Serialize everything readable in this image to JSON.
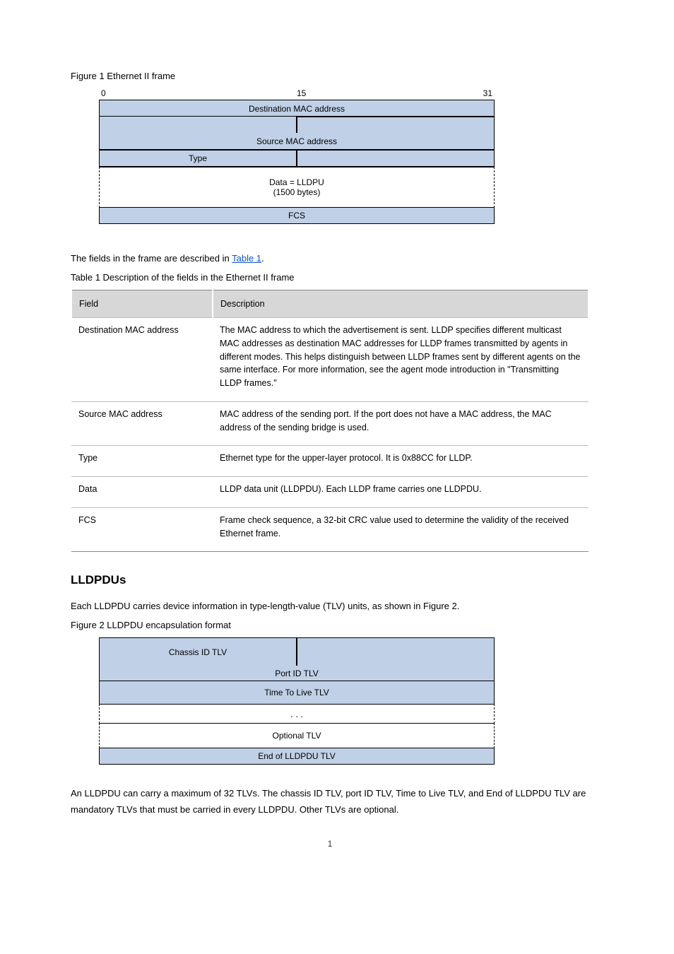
{
  "fig1": {
    "caption": "Figure 1 Ethernet II frame",
    "bit_labels": [
      "0",
      "15",
      "31"
    ],
    "dest_mac": "Destination MAC address",
    "src_mac": "Source MAC address",
    "type": "Type",
    "data": "Data = LLDPU",
    "data_bytes": "(1500 bytes)",
    "fcs": "FCS",
    "fill_color": "#c0d0e6",
    "border_color": "#000000"
  },
  "intro": {
    "text_before": "The fields in the frame are described in ",
    "link": "Table 1",
    "text_after": "."
  },
  "table": {
    "caption": "Table 1 Description of the fields in the Ethernet II frame",
    "columns": [
      "Field",
      "Description"
    ],
    "rows": [
      [
        "Destination MAC address",
        "The MAC address to which the advertisement is sent. LLDP specifies different multicast MAC addresses as destination MAC addresses for LLDP frames transmitted by agents in different modes. This helps distinguish between LLDP frames sent by different agents on the same interface. For more information, see the agent mode introduction in \"Transmitting LLDP frames.\""
      ],
      [
        "Source MAC address",
        "MAC address of the sending port. If the port does not have a MAC address, the MAC address of the sending bridge is used."
      ],
      [
        "Type",
        "Ethernet type for the upper-layer protocol. It is 0x88CC for LLDP."
      ],
      [
        "Data",
        "LLDP data unit (LLDPDU). Each LLDP frame carries one LLDPDU."
      ],
      [
        "FCS",
        "Frame check sequence, a 32-bit CRC value used to determine the validity of the received Ethernet frame."
      ]
    ]
  },
  "lldpdu_section": {
    "heading": "LLDPDUs",
    "para": "Each LLDPDU carries device information in type-length-value (TLV) units, as shown in Figure 2.",
    "caption": "Figure 2 LLDPDU encapsulation format",
    "chassis_tlv": "Chassis ID TLV",
    "port_tlv": "Port ID TLV",
    "ttl_tlv": "Time To Live TLV",
    "dots": ". . .",
    "opt_tlv": "Optional TLV",
    "end_tlv": "End of LLDPDU TLV",
    "fill_color": "#c0d0e6"
  },
  "footer": {
    "para": "An LLDPDU can carry a maximum of 32 TLVs. The chassis ID TLV, port ID TLV, Time to Live TLV, and End of LLDPDU TLV are mandatory TLVs that must be carried in every LLDPDU. Other TLVs are optional.",
    "page": "1"
  }
}
